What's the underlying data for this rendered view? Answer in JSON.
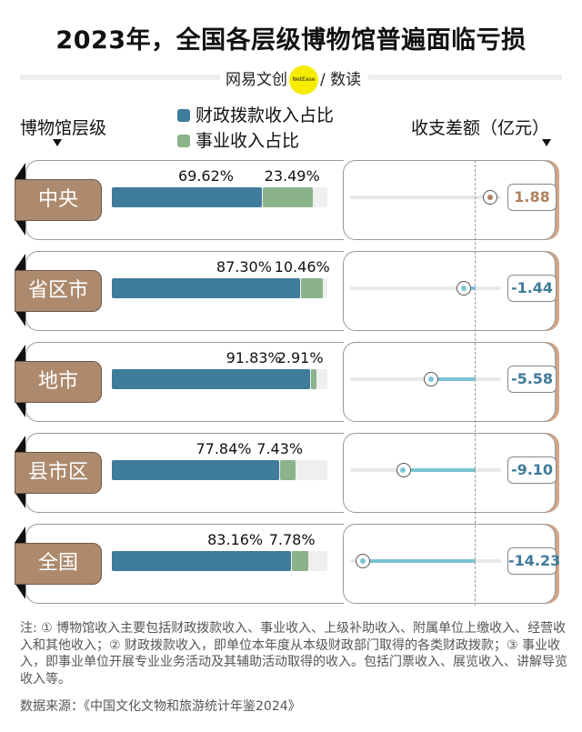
{
  "title": "2023年，全国各层级博物馆普遍面临亏损",
  "brand": {
    "left": "网易文创",
    "logo": "NetEase",
    "right": "/ 数读"
  },
  "headers": {
    "level": "博物馆层级",
    "diff": "收支差额（亿元）"
  },
  "colors": {
    "fiscal": "#3f7b9a",
    "business": "#8ab38a",
    "tag": "#ad8a6d",
    "deficit_line": "#7cc3d4",
    "positive_text": "#b08060",
    "negative_text": "#3f7b9a"
  },
  "chart_data": {
    "type": "bar",
    "legend": [
      {
        "name": "财政拨款收入占比",
        "color": "#3f7b9a"
      },
      {
        "name": "事业收入占比",
        "color": "#8ab38a"
      }
    ],
    "categories": [
      "中央",
      "省区市",
      "地市",
      "县市区",
      "全国"
    ],
    "series": [
      {
        "name": "财政拨款收入占比",
        "values": [
          69.62,
          87.3,
          91.83,
          77.84,
          83.16
        ],
        "labels": [
          "69.62%",
          "87.30%",
          "91.83%",
          "77.84%",
          "83.16%"
        ]
      },
      {
        "name": "事业收入占比",
        "values": [
          23.49,
          10.46,
          2.91,
          7.43,
          7.78
        ],
        "labels": [
          "23.49%",
          "10.46%",
          "2.91%",
          "7.43%",
          "7.78%"
        ]
      }
    ],
    "diff": {
      "name": "收支差额（亿元）",
      "values": [
        1.88,
        -1.44,
        -5.58,
        -9.1,
        -14.23
      ],
      "labels": [
        "1.88",
        "-1.44",
        "-5.58",
        "-9.10",
        "-14.23"
      ],
      "range": [
        -14.23,
        1.88
      ]
    }
  },
  "note": "注: ① 博物馆收入主要包括财政拨款收入、事业收入、上级补助收入、附属单位上缴收入、经营收入和其他收入；② 财政拨款收入，即单位本年度从本级财政部门取得的各类财政拨款；③ 事业收入，即事业单位开展专业业务活动及其辅助活动取得的收入。包括门票收入、展览收入、讲解导览收入等。",
  "source": "数据来源：《中国文化文物和旅游统计年鉴2024》"
}
